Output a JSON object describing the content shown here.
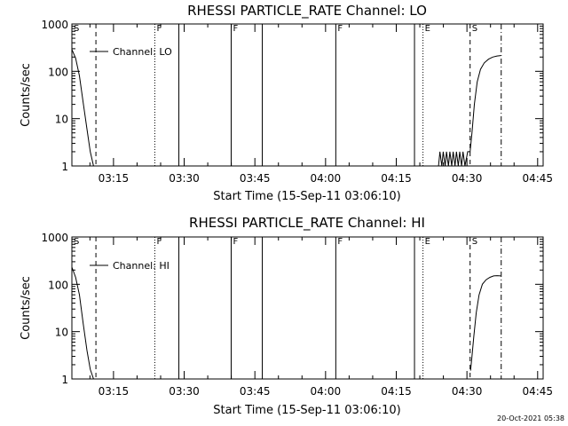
{
  "chart_data": [
    {
      "type": "line",
      "title": "RHESSI PARTICLE_RATE Channel: LO",
      "xlabel": "Start Time (15-Sep-11 03:06:10)",
      "ylabel": "Counts/sec",
      "ylog": true,
      "ylim": [
        1,
        1000
      ],
      "xlim_min": [
        0,
        100
      ],
      "xticks": [
        {
          "label": "03:15",
          "t": 8.83
        },
        {
          "label": "03:30",
          "t": 23.83
        },
        {
          "label": "03:45",
          "t": 38.83
        },
        {
          "label": "04:00",
          "t": 53.83
        },
        {
          "label": "04:15",
          "t": 68.83
        },
        {
          "label": "04:30",
          "t": 83.83
        },
        {
          "label": "04:45",
          "t": 98.83
        }
      ],
      "yticks": [
        {
          "label": "1",
          "v": 1
        },
        {
          "label": "10",
          "v": 10
        },
        {
          "label": "100",
          "v": 100
        },
        {
          "label": "1000",
          "v": 1000
        }
      ],
      "legend": {
        "label": "Channel: LO",
        "position": "top-left"
      },
      "events": [
        {
          "t": 5.1,
          "style": "dashed",
          "label": ""
        },
        {
          "t": 17.6,
          "style": "dotted",
          "label": "F"
        },
        {
          "t": 22.7,
          "style": "solid",
          "label": ""
        },
        {
          "t": 33.8,
          "style": "solid",
          "label": "F"
        },
        {
          "t": 40.4,
          "style": "solid",
          "label": ""
        },
        {
          "t": 56.0,
          "style": "solid",
          "label": "F"
        },
        {
          "t": 72.7,
          "style": "solid",
          "label": ""
        },
        {
          "t": 74.5,
          "style": "dotted",
          "label": "E"
        },
        {
          "t": 84.5,
          "style": "dashed",
          "label": "S"
        },
        {
          "t": 91.1,
          "style": "dashdot",
          "label": ""
        }
      ],
      "corner_label": "S",
      "series": [
        {
          "x": [
            0,
            0.8,
            1.6,
            2.4,
            3.2,
            3.9,
            4.6
          ],
          "y": [
            290,
            190,
            80,
            22,
            6,
            2,
            1
          ]
        },
        {
          "x": [
            77.8,
            78.1,
            78.5,
            78.8,
            79.2,
            79.5,
            79.9,
            80.2,
            80.6,
            80.9,
            81.3,
            81.6,
            82.0,
            82.3,
            82.7,
            83.0,
            83.4,
            84.0,
            84.5,
            84.9,
            85.4,
            86.0,
            86.7,
            87.5,
            88.4,
            89.3,
            90.2,
            91.0
          ],
          "y": [
            1,
            2,
            1,
            2,
            1,
            2,
            1,
            2,
            1,
            2,
            1,
            2,
            1,
            2,
            1,
            2,
            1,
            2,
            2,
            5,
            20,
            60,
            110,
            150,
            180,
            200,
            210,
            215
          ]
        }
      ]
    },
    {
      "type": "line",
      "title": "RHESSI PARTICLE_RATE Channel: HI",
      "xlabel": "Start Time (15-Sep-11 03:06:10)",
      "ylabel": "Counts/sec",
      "ylog": true,
      "ylim": [
        1,
        1000
      ],
      "xlim_min": [
        0,
        100
      ],
      "xticks": [
        {
          "label": "03:15",
          "t": 8.83
        },
        {
          "label": "03:30",
          "t": 23.83
        },
        {
          "label": "03:45",
          "t": 38.83
        },
        {
          "label": "04:00",
          "t": 53.83
        },
        {
          "label": "04:15",
          "t": 68.83
        },
        {
          "label": "04:30",
          "t": 83.83
        },
        {
          "label": "04:45",
          "t": 98.83
        }
      ],
      "yticks": [
        {
          "label": "1",
          "v": 1
        },
        {
          "label": "10",
          "v": 10
        },
        {
          "label": "100",
          "v": 100
        },
        {
          "label": "1000",
          "v": 1000
        }
      ],
      "legend": {
        "label": "Channel: HI",
        "position": "top-left"
      },
      "events": [
        {
          "t": 5.1,
          "style": "dashed",
          "label": ""
        },
        {
          "t": 17.6,
          "style": "dotted",
          "label": "F"
        },
        {
          "t": 22.7,
          "style": "solid",
          "label": ""
        },
        {
          "t": 33.8,
          "style": "solid",
          "label": "F"
        },
        {
          "t": 40.4,
          "style": "solid",
          "label": ""
        },
        {
          "t": 56.0,
          "style": "solid",
          "label": "F"
        },
        {
          "t": 72.7,
          "style": "solid",
          "label": ""
        },
        {
          "t": 74.5,
          "style": "dotted",
          "label": "E"
        },
        {
          "t": 84.5,
          "style": "dashed",
          "label": "S"
        },
        {
          "t": 91.1,
          "style": "dashdot",
          "label": ""
        }
      ],
      "corner_label": "S",
      "series": [
        {
          "x": [
            0,
            0.8,
            1.6,
            2.4,
            3.2,
            3.9,
            4.6
          ],
          "y": [
            230,
            140,
            60,
            15,
            4,
            1.6,
            1
          ]
        },
        {
          "x": [
            84.6,
            84.9,
            85.3,
            85.8,
            86.4,
            87.1,
            87.9,
            88.7,
            89.5,
            90.2,
            91.0
          ],
          "y": [
            1.5,
            3,
            8,
            25,
            60,
            100,
            125,
            140,
            150,
            152,
            150
          ]
        }
      ]
    }
  ],
  "footer": {
    "timestamp": "20-Oct-2021 05:38"
  }
}
